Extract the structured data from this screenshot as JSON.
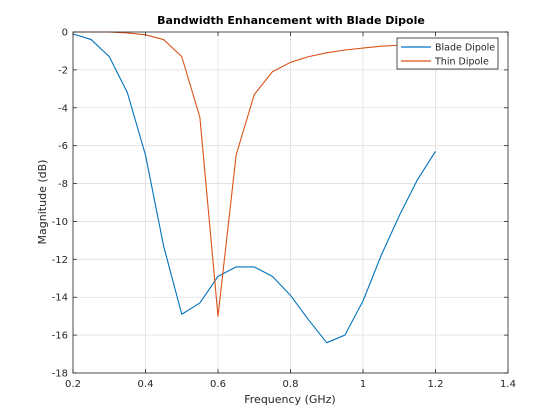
{
  "chart_data": {
    "type": "line",
    "title": "Bandwidth Enhancement with Blade Dipole",
    "xlabel": "Frequency (GHz)",
    "ylabel": "Magnitude (dB)",
    "xlim": [
      0.2,
      1.4
    ],
    "ylim": [
      -18,
      0
    ],
    "xticks": [
      0.2,
      0.4,
      0.6,
      0.8,
      1,
      1.2,
      1.4
    ],
    "xtick_labels": [
      "0.2",
      "0.4",
      "0.6",
      "0.8",
      "1",
      "1.2",
      "1.4"
    ],
    "yticks": [
      0,
      -2,
      -4,
      -6,
      -8,
      -10,
      -12,
      -14,
      -16,
      -18
    ],
    "ytick_labels": [
      "0",
      "-2",
      "-4",
      "-6",
      "-8",
      "-10",
      "-12",
      "-14",
      "-16",
      "-18"
    ],
    "grid": true,
    "legend_position": "top-right",
    "series": [
      {
        "name": "Blade Dipole",
        "color": "#0072bd",
        "x": [
          0.2,
          0.25,
          0.3,
          0.35,
          0.4,
          0.45,
          0.5,
          0.55,
          0.6,
          0.65,
          0.7,
          0.75,
          0.8,
          0.85,
          0.9,
          0.95,
          1.0,
          1.05,
          1.1,
          1.15,
          1.2
        ],
        "y": [
          -0.1,
          -0.4,
          -1.3,
          -3.2,
          -6.5,
          -11.3,
          -14.9,
          -14.3,
          -12.9,
          -12.4,
          -12.4,
          -12.9,
          -13.9,
          -15.2,
          -16.4,
          -16.0,
          -14.2,
          -11.8,
          -9.7,
          -7.8,
          -6.3
        ]
      },
      {
        "name": "Thin Dipole",
        "color": "#d95319",
        "x": [
          0.2,
          0.25,
          0.3,
          0.35,
          0.4,
          0.45,
          0.5,
          0.55,
          0.6,
          0.65,
          0.7,
          0.75,
          0.8,
          0.85,
          0.9,
          0.95,
          1.0,
          1.05,
          1.1,
          1.15,
          1.2
        ],
        "y": [
          0.0,
          0.0,
          0.0,
          -0.05,
          -0.15,
          -0.4,
          -1.3,
          -4.5,
          -15.0,
          -6.5,
          -3.3,
          -2.1,
          -1.6,
          -1.3,
          -1.1,
          -0.95,
          -0.85,
          -0.75,
          -0.7,
          -0.65,
          -0.6
        ]
      }
    ]
  }
}
